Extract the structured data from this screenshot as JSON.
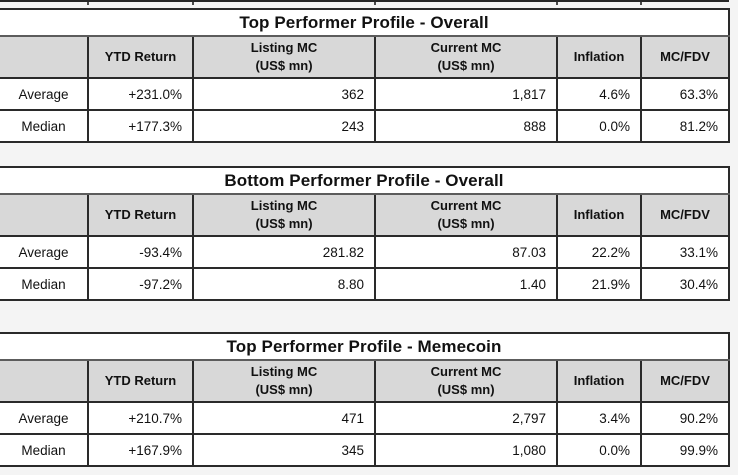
{
  "colors": {
    "page_background": "#f4f4f4",
    "header_row_background": "#d8d8d8",
    "border": "#2a2a2a",
    "table_background": "#ffffff",
    "text": "#111111"
  },
  "columns": {
    "row_label": "",
    "ytd": "YTD Return",
    "listing_mc": "Listing MC",
    "listing_mc_unit": "(US$ mn)",
    "current_mc": "Current MC",
    "current_mc_unit": "(US$ mn)",
    "inflation": "Inflation",
    "mc_fdv": "MC/FDV"
  },
  "tables": [
    {
      "title": "Top Performer Profile - Overall",
      "rows": [
        {
          "label": "Average",
          "ytd_return": "+231.0%",
          "listing_mc": "362",
          "current_mc": "1,817",
          "inflation": "4.6%",
          "mc_fdv": "63.3%"
        },
        {
          "label": "Median",
          "ytd_return": "+177.3%",
          "listing_mc": "243",
          "current_mc": "888",
          "inflation": "0.0%",
          "mc_fdv": "81.2%"
        }
      ]
    },
    {
      "title": "Bottom Performer Profile - Overall",
      "rows": [
        {
          "label": "Average",
          "ytd_return": "-93.4%",
          "listing_mc": "281.82",
          "current_mc": "87.03",
          "inflation": "22.2%",
          "mc_fdv": "33.1%"
        },
        {
          "label": "Median",
          "ytd_return": "-97.2%",
          "listing_mc": "8.80",
          "current_mc": "1.40",
          "inflation": "21.9%",
          "mc_fdv": "30.4%"
        }
      ]
    },
    {
      "title": "Top Performer Profile - Memecoin",
      "rows": [
        {
          "label": "Average",
          "ytd_return": "+210.7%",
          "listing_mc": "471",
          "current_mc": "2,797",
          "inflation": "3.4%",
          "mc_fdv": "90.2%"
        },
        {
          "label": "Median",
          "ytd_return": "+167.9%",
          "listing_mc": "345",
          "current_mc": "1,080",
          "inflation": "0.0%",
          "mc_fdv": "99.9%"
        }
      ]
    }
  ]
}
